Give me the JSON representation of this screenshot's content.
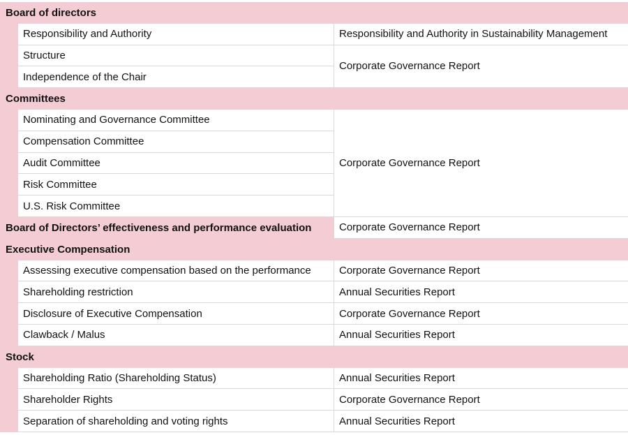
{
  "sections": [
    {
      "title": "Board of directors",
      "items": [
        "Responsibility and Authority",
        "Structure",
        "Independence of the Chair"
      ],
      "refs": [
        {
          "items": [
            0
          ],
          "text": "Responsibility and Authority in Sustainability Management"
        },
        {
          "items": [
            1,
            2
          ],
          "text": "Corporate Governance Report"
        }
      ]
    },
    {
      "title": "Committees",
      "items": [
        "Nominating and Governance Committee",
        "Compensation Committee",
        "Audit Committee",
        "Risk Committee",
        "U.S. Risk Committee"
      ],
      "refs": [
        {
          "items": [
            0,
            1,
            2,
            3,
            4
          ],
          "text": "Corporate Governance Report"
        }
      ]
    },
    {
      "title": "Board of Directors’ effectiveness and performance evaluation",
      "inline_ref": "Corporate Governance Report",
      "items": [],
      "refs": []
    },
    {
      "title": "Executive Compensation",
      "items": [
        "Assessing executive compensation based on the performance",
        "Shareholding restriction",
        "Disclosure of Executive Compensation",
        "Clawback / Malus"
      ],
      "refs": [
        {
          "items": [
            0
          ],
          "text": "Corporate Governance Report"
        },
        {
          "items": [
            1
          ],
          "text": "Annual Securities Report"
        },
        {
          "items": [
            2
          ],
          "text": "Corporate Governance Report"
        },
        {
          "items": [
            3
          ],
          "text": "Annual Securities Report"
        }
      ]
    },
    {
      "title": "Stock",
      "items": [
        "Shareholding Ratio (Shareholding Status)",
        "Shareholder Rights",
        "Separation of shareholding and voting rights"
      ],
      "refs": [
        {
          "items": [
            0
          ],
          "text": "Annual Securities Report"
        },
        {
          "items": [
            1
          ],
          "text": "Corporate Governance Report"
        },
        {
          "items": [
            2
          ],
          "text": "Annual Securities Report"
        }
      ]
    }
  ],
  "colors": {
    "header_bg": "#f4cdd4",
    "grid_line": "#d9d9d9",
    "text": "#111111"
  }
}
